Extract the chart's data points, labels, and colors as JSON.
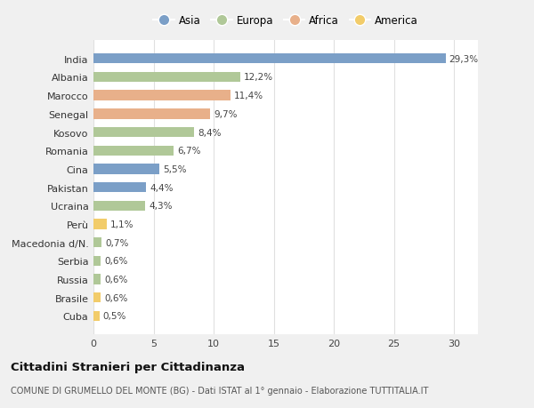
{
  "categories": [
    "India",
    "Albania",
    "Marocco",
    "Senegal",
    "Kosovo",
    "Romania",
    "Cina",
    "Pakistan",
    "Ucraina",
    "Perù",
    "Macedonia d/N.",
    "Serbia",
    "Russia",
    "Brasile",
    "Cuba"
  ],
  "values": [
    29.3,
    12.2,
    11.4,
    9.7,
    8.4,
    6.7,
    5.5,
    4.4,
    4.3,
    1.1,
    0.7,
    0.6,
    0.6,
    0.6,
    0.5
  ],
  "labels": [
    "29,3%",
    "12,2%",
    "11,4%",
    "9,7%",
    "8,4%",
    "6,7%",
    "5,5%",
    "4,4%",
    "4,3%",
    "1,1%",
    "0,7%",
    "0,6%",
    "0,6%",
    "0,6%",
    "0,5%"
  ],
  "continents": [
    "Asia",
    "Europa",
    "Africa",
    "Africa",
    "Europa",
    "Europa",
    "Asia",
    "Asia",
    "Europa",
    "America",
    "Europa",
    "Europa",
    "Europa",
    "America",
    "America"
  ],
  "colors": {
    "Asia": "#7b9fc7",
    "Europa": "#b0c898",
    "Africa": "#e8b08a",
    "America": "#f2cc6a"
  },
  "legend_order": [
    "Asia",
    "Europa",
    "Africa",
    "America"
  ],
  "title": "Cittadini Stranieri per Cittadinanza",
  "subtitle": "COMUNE DI GRUMELLO DEL MONTE (BG) - Dati ISTAT al 1° gennaio - Elaborazione TUTTITALIA.IT",
  "xlim": [
    0,
    32
  ],
  "xticks": [
    0,
    5,
    10,
    15,
    20,
    25,
    30
  ],
  "background_color": "#f0f0f0",
  "plot_bg_color": "#ffffff",
  "grid_color": "#e0e0e0"
}
